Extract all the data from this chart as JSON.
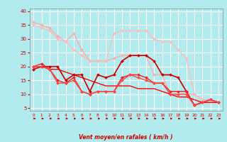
{
  "xlabel": "Vent moyen/en rafales ( km/h )",
  "background_color": "#b2ebee",
  "grid_color": "#ffffff",
  "xlim": [
    -0.5,
    23.5
  ],
  "ylim": [
    4,
    41
  ],
  "yticks": [
    5,
    10,
    15,
    20,
    25,
    30,
    35,
    40
  ],
  "xticks": [
    0,
    1,
    2,
    3,
    4,
    5,
    6,
    7,
    8,
    9,
    10,
    11,
    12,
    13,
    14,
    15,
    16,
    17,
    18,
    19,
    20,
    21,
    22,
    23
  ],
  "series": [
    {
      "x": [
        0,
        1,
        2,
        3,
        4,
        5,
        6,
        7,
        8,
        9,
        10,
        11,
        12,
        13,
        14,
        15,
        16,
        17,
        18,
        19,
        20,
        21,
        22,
        23
      ],
      "y": [
        36,
        35,
        34,
        31,
        29,
        32,
        26,
        22,
        22,
        22,
        23,
        24,
        24,
        24,
        24,
        17,
        17,
        10,
        10,
        10,
        10,
        8,
        8,
        7
      ],
      "color": "#ffaaaa",
      "lw": 1.0,
      "marker": "D",
      "ms": 2.0
    },
    {
      "x": [
        0,
        1,
        2,
        3,
        4,
        5,
        6,
        7,
        8,
        9,
        10,
        11,
        12,
        13,
        14,
        15,
        16,
        17,
        18,
        19,
        20,
        21,
        22,
        23
      ],
      "y": [
        35,
        34,
        33,
        30,
        29,
        26,
        24,
        22,
        22,
        22,
        32,
        33,
        33,
        33,
        33,
        30,
        29,
        29,
        26,
        23,
        10,
        8,
        8,
        7
      ],
      "color": "#ffbbbb",
      "lw": 1.0,
      "marker": "D",
      "ms": 2.0
    },
    {
      "x": [
        0,
        1,
        2,
        3,
        4,
        5,
        6,
        7,
        8,
        9,
        10,
        11,
        12,
        13,
        14,
        15,
        16,
        17,
        18,
        19,
        20,
        21,
        22,
        23
      ],
      "y": [
        19,
        20,
        20,
        20,
        15,
        17,
        17,
        11,
        17,
        16,
        17,
        22,
        24,
        24,
        24,
        22,
        17,
        17,
        16,
        11,
        6,
        7,
        8,
        7
      ],
      "color": "#cc0000",
      "lw": 1.2,
      "marker": "D",
      "ms": 2.0
    },
    {
      "x": [
        0,
        1,
        2,
        3,
        4,
        5,
        6,
        7,
        8,
        9,
        10,
        11,
        12,
        13,
        14,
        15,
        16,
        17,
        18,
        19,
        20,
        21,
        22,
        23
      ],
      "y": [
        20,
        21,
        19,
        15,
        14,
        16,
        11,
        10,
        11,
        11,
        11,
        16,
        17,
        17,
        16,
        14,
        14,
        11,
        11,
        11,
        6,
        7,
        8,
        7
      ],
      "color": "#ee2222",
      "lw": 1.0,
      "marker": "D",
      "ms": 2.0
    },
    {
      "x": [
        0,
        1,
        2,
        3,
        4,
        5,
        6,
        7,
        8,
        9,
        10,
        11,
        12,
        13,
        14,
        15,
        16,
        17,
        18,
        19,
        20,
        21,
        22,
        23
      ],
      "y": [
        20,
        20,
        19,
        14,
        14,
        15,
        11,
        10,
        11,
        11,
        11,
        15,
        17,
        16,
        15,
        14,
        14,
        10,
        10,
        10,
        6,
        7,
        8,
        7
      ],
      "color": "#ff4444",
      "lw": 1.0,
      "marker": "D",
      "ms": 2.0
    },
    {
      "x": [
        0,
        1,
        2,
        3,
        4,
        5,
        6,
        7,
        8,
        9,
        10,
        11,
        12,
        13,
        14,
        15,
        16,
        17,
        18,
        19,
        20,
        21,
        22,
        23
      ],
      "y": [
        20,
        20,
        19,
        19,
        18,
        17,
        16,
        15,
        14,
        13,
        13,
        13,
        13,
        12,
        12,
        12,
        11,
        10,
        9,
        9,
        8,
        7,
        7,
        7
      ],
      "color": "#ff0000",
      "lw": 1.0,
      "marker": null,
      "ms": 0
    }
  ]
}
